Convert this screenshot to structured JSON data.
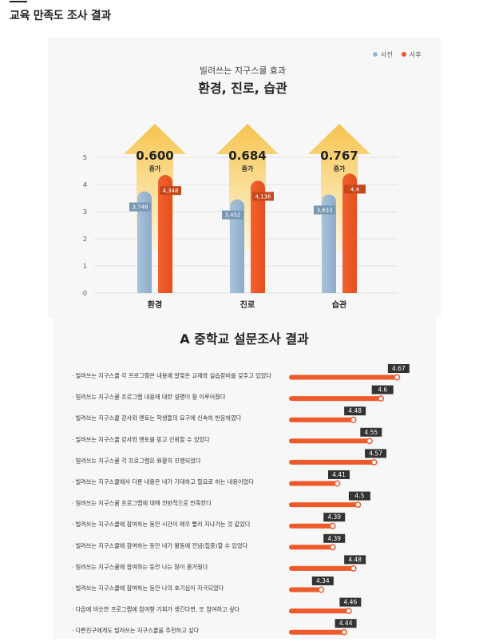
{
  "page": {
    "title": "교육 만족도 조사 결과"
  },
  "chart_data": [
    {
      "type": "bar",
      "subtitle": "빌려쓰는 지구스쿨 효과",
      "title": "환경, 진로, 습관",
      "categories": [
        "환경",
        "진로",
        "습관"
      ],
      "series": [
        {
          "name": "사전",
          "color": "#9ab6d1",
          "label_bg": "#7897b5",
          "values": [
            3.748,
            3.452,
            3.633
          ],
          "labels": [
            "3,748",
            "3,452",
            "3,633"
          ]
        },
        {
          "name": "사후",
          "color": "#ee5a2a",
          "label_bg": "#c7471d",
          "values": [
            4.348,
            4.136,
            4.4
          ],
          "labels": [
            "4,348",
            "4,136",
            "4,4"
          ]
        }
      ],
      "increase": {
        "values": [
          "0.600",
          "0.684",
          "0.767"
        ],
        "label": "증가"
      },
      "ylim": [
        0,
        5
      ],
      "yticks": [
        "0",
        "1",
        "2",
        "3",
        "4",
        "5"
      ],
      "grid": true,
      "legend": "top-right"
    },
    {
      "type": "bar",
      "orientation": "horizontal",
      "title": "A 중학교 설문조사 결과",
      "color": "#ee5a2a",
      "label_bg": "#333333",
      "xlim": [
        4.2,
        4.7
      ],
      "items": [
        {
          "label": "· 빌려쓰는 지구스쿨 각 프로그램은 내용에 알맞은 교재와 실습장비를 갖추고 있었다",
          "value": 4.67,
          "value_label": "4.67"
        },
        {
          "label": "· 빌려쓰는 지구스쿨 프로그램 내용에 대한 설명이 잘 이루어졌다",
          "value": 4.6,
          "value_label": "4.6"
        },
        {
          "label": "· 빌려쓰는 지구스쿨 강사와 멘토는 학생들의 요구에 신속히 반응하였다",
          "value": 4.48,
          "value_label": "4.48"
        },
        {
          "label": "· 빌려쓰는 지구스쿨 강사와 멘토를 믿고 신뢰할 수 있었다",
          "value": 4.55,
          "value_label": "4.55"
        },
        {
          "label": "· 빌려쓰는 지구스쿨 각 프로그램은 원활히 진행되었다",
          "value": 4.57,
          "value_label": "4.57"
        },
        {
          "label": "· 빌려쓰는 지구스쿨에서 다룬 내용은 내가 기대하고 필요로 하는 내용이었다",
          "value": 4.41,
          "value_label": "4.41"
        },
        {
          "label": "· 빌려쓰는 지구스쿨 프로그램에 대해 전반적으로 만족한다",
          "value": 4.5,
          "value_label": "4.5"
        },
        {
          "label": "· 빌려쓰는 지구스쿨에 참여하는 동안 시간이 매우 빨리 지나가는 것 같았다",
          "value": 4.39,
          "value_label": "4.39"
        },
        {
          "label": "· 빌려쓰는 지구스쿨에 참여하는 동안 내가 활동에 전념(집중)할 수 있었다",
          "value": 4.39,
          "value_label": "4.39"
        },
        {
          "label": "· 빌려쓰는 지구스쿨에 참여하는 동안 나는 많이 즐거웠다",
          "value": 4.48,
          "value_label": "4.48"
        },
        {
          "label": "· 빌려쓰는 지구스쿨에 참여하는 동안 나의 호기심이 자극되었다",
          "value": 4.34,
          "value_label": "4.34"
        },
        {
          "label": "· 다음에 비슷한 프로그램에 참여할 기회가 생긴다면, 또 참여하고 싶다",
          "value": 4.46,
          "value_label": "4.46"
        },
        {
          "label": "· 다른친구에게도 빌려쓰는 지구스쿨을 추천하고 싶다",
          "value": 4.44,
          "value_label": "4.44"
        }
      ]
    }
  ]
}
